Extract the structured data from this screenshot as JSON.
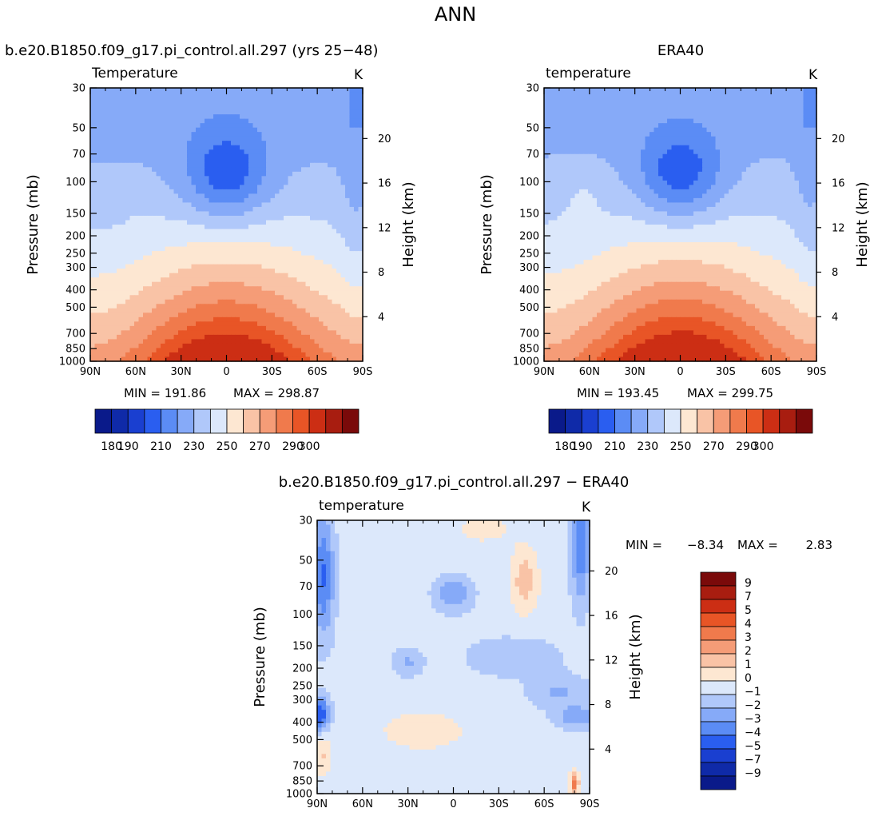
{
  "figure": {
    "title": "ANN",
    "units_label": "K",
    "ylabel_left": "Pressure (mb)",
    "ylabel_right": "Height (km)",
    "x_ticks": [
      "90N",
      "60N",
      "30N",
      "0",
      "30S",
      "60S",
      "90S"
    ],
    "pressure_ticks": [
      "30",
      "50",
      "70",
      "100",
      "150",
      "200",
      "250",
      "300",
      "400",
      "500",
      "700",
      "850",
      "1000"
    ],
    "height_ticks": [
      "20",
      "16",
      "12",
      "8",
      "4"
    ]
  },
  "chart_data": [
    {
      "type": "heatmap",
      "panel_title": "b.e20.B1850.f09_g17.pi_control.all.297 (yrs 25−48)",
      "variable_label": "Temperature",
      "units": "K",
      "x_values": [
        90,
        60,
        30,
        0,
        -30,
        -60,
        -90
      ],
      "y_values_mb": [
        30,
        50,
        70,
        100,
        150,
        200,
        250,
        300,
        400,
        500,
        700,
        850,
        1000
      ],
      "min_label": "MIN = 191.86",
      "max_label": "MAX = 298.87",
      "min": 191.86,
      "max": 298.87,
      "field": {
        "base": 224,
        "trop_min": 194,
        "surface_max": 298,
        "n_hem_bias": 0,
        "min_lat": 2
      },
      "colorbar": {
        "levels": [
          180,
          190,
          200,
          210,
          220,
          230,
          240,
          250,
          260,
          270,
          280,
          290,
          300
        ],
        "tick_labels": [
          "180",
          "190",
          "210",
          "230",
          "250",
          "270",
          "290",
          "300"
        ],
        "colors": [
          "#0a1a8a",
          "#0f2aa8",
          "#1a3fd0",
          "#2a5ef0",
          "#5b8cf5",
          "#86aaf8",
          "#b0c8fa",
          "#dce8fb",
          "#fde7d2",
          "#f9c3a6",
          "#f59c77",
          "#f07a4c",
          "#e85526",
          "#cc2e14",
          "#a81d10",
          "#7a0a0a"
        ]
      }
    },
    {
      "type": "heatmap",
      "panel_title": "ERA40",
      "variable_label": "temperature",
      "units": "K",
      "x_values": [
        90,
        60,
        30,
        0,
        -30,
        -60,
        -90
      ],
      "y_values_mb": [
        30,
        50,
        70,
        100,
        150,
        200,
        250,
        300,
        400,
        500,
        700,
        850,
        1000
      ],
      "min_label": "MIN = 193.45",
      "max_label": "MAX = 299.75",
      "min": 193.45,
      "max": 299.75,
      "field": {
        "base": 225,
        "trop_min": 195,
        "surface_max": 299.5,
        "n_hem_bias": 3,
        "min_lat": 2
      },
      "colorbar": {
        "levels": [
          180,
          190,
          200,
          210,
          220,
          230,
          240,
          250,
          260,
          270,
          280,
          290,
          300
        ],
        "tick_labels": [
          "180",
          "190",
          "210",
          "230",
          "250",
          "270",
          "290",
          "300"
        ],
        "colors": [
          "#0a1a8a",
          "#0f2aa8",
          "#1a3fd0",
          "#2a5ef0",
          "#5b8cf5",
          "#86aaf8",
          "#b0c8fa",
          "#dce8fb",
          "#fde7d2",
          "#f9c3a6",
          "#f59c77",
          "#f07a4c",
          "#e85526",
          "#cc2e14",
          "#a81d10",
          "#7a0a0a"
        ]
      }
    },
    {
      "type": "heatmap",
      "panel_title": "b.e20.B1850.f09_g17.pi_control.all.297 − ERA40",
      "variable_label": "temperature",
      "units": "K",
      "x_values": [
        90,
        60,
        30,
        0,
        -30,
        -60,
        -90
      ],
      "y_values_mb": [
        30,
        50,
        70,
        100,
        150,
        200,
        250,
        300,
        400,
        500,
        700,
        850,
        1000
      ],
      "min_label": "MIN =",
      "min_value": "−8.34",
      "max_label": "MAX =",
      "max_value": "2.83",
      "min": -8.34,
      "max": 2.83,
      "colorbar": {
        "levels": [
          -9,
          -7,
          -5,
          -4,
          -3,
          -2,
          -1,
          0,
          1,
          2,
          3,
          4,
          5,
          7,
          9
        ],
        "tick_labels": [
          "9",
          "7",
          "5",
          "4",
          "3",
          "2",
          "1",
          "0",
          "−1",
          "−2",
          "−3",
          "−4",
          "−5",
          "−7",
          "−9"
        ],
        "colors": [
          "#0a1a8a",
          "#0f2aa8",
          "#1a3fd0",
          "#2a5ef0",
          "#5b8cf5",
          "#86aaf8",
          "#b0c8fa",
          "#dce8fb",
          "#fde7d2",
          "#f9c3a6",
          "#f59c77",
          "#f07a4c",
          "#e85526",
          "#cc2e14",
          "#a81d10",
          "#7a0a0a"
        ]
      }
    }
  ]
}
